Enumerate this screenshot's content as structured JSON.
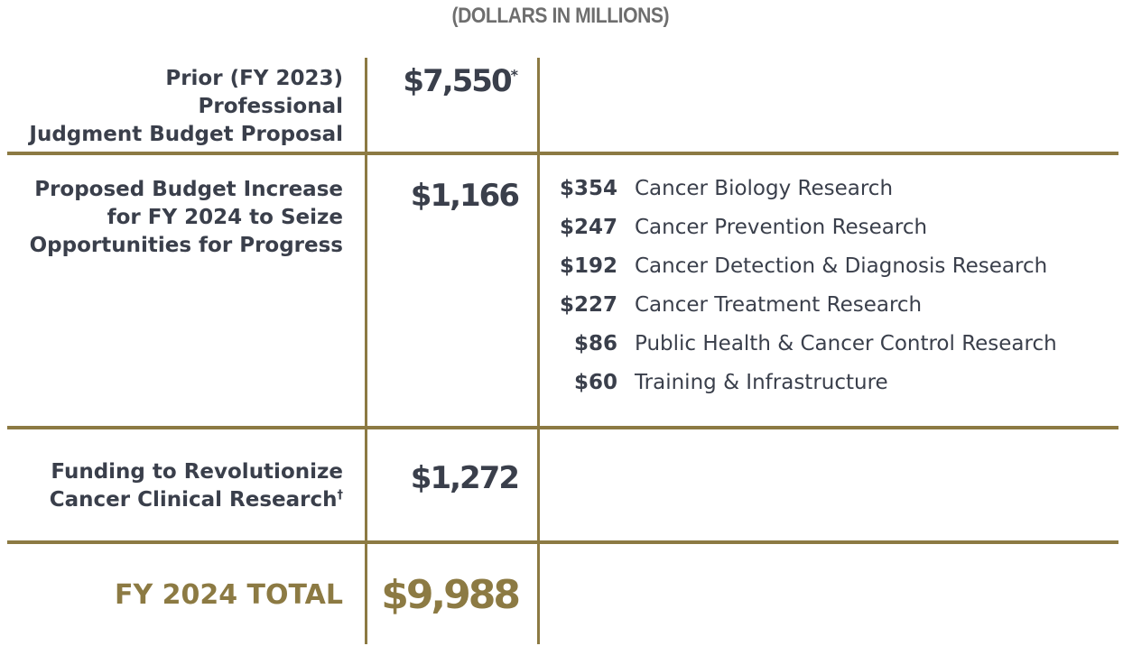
{
  "caption": "(DOLLARS IN MILLIONS)",
  "rows": {
    "prior": {
      "label_line1": "Prior (FY 2023) Professional",
      "label_line2": "Judgment Budget Proposal",
      "amount": "$7,550",
      "amount_mark": "*"
    },
    "increase": {
      "label_line1": "Proposed Budget Increase",
      "label_line2": "for FY 2024 to Seize",
      "label_line3": "Opportunities for Progress",
      "amount": "$1,166",
      "breakdown": [
        {
          "value": "$354",
          "name": "Cancer Biology Research"
        },
        {
          "value": "$247",
          "name": "Cancer Prevention Research"
        },
        {
          "value": "$192",
          "name": "Cancer Detection & Diagnosis Research"
        },
        {
          "value": "$227",
          "name": "Cancer Treatment Research"
        },
        {
          "value": "$86",
          "name": "Public Health & Cancer Control Research"
        },
        {
          "value": "$60",
          "name": "Training & Infrastructure"
        }
      ]
    },
    "funding": {
      "label_line1": "Funding to Revolutionize",
      "label_line2": "Cancer Clinical Research",
      "label_mark": "†",
      "amount": "$1,272"
    },
    "total": {
      "label": "FY 2024 TOTAL",
      "amount": "$9,988"
    }
  },
  "colors": {
    "accent": "#8c7a43",
    "text": "#3a3f4b",
    "caption": "#6e6e6e"
  }
}
